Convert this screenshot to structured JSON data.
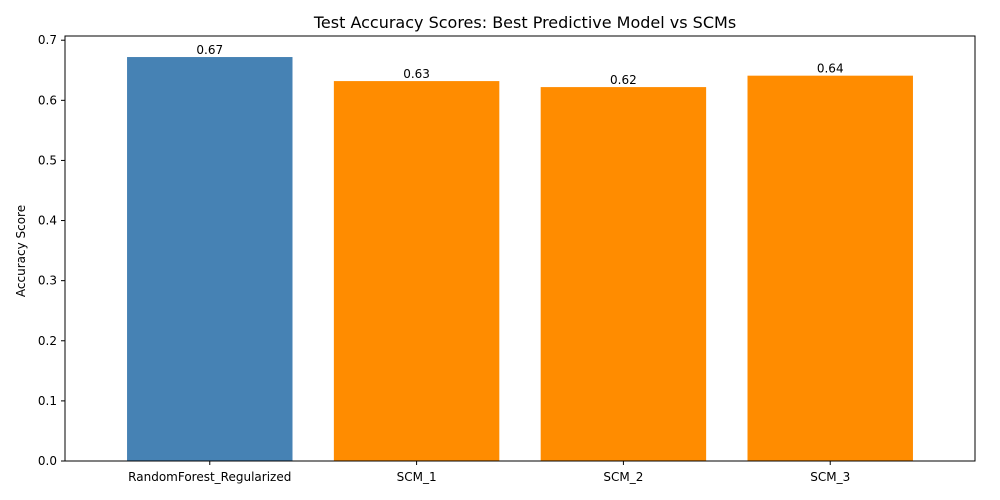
{
  "chart_data": {
    "type": "bar",
    "title": "Test Accuracy Scores: Best Predictive Model vs SCMs",
    "xlabel": "",
    "ylabel": "Accuracy Score",
    "categories": [
      "RandomForest_Regularized",
      "SCM_1",
      "SCM_2",
      "SCM_3"
    ],
    "values": [
      0.672,
      0.632,
      0.622,
      0.641
    ],
    "value_labels": [
      "0.67",
      "0.63",
      "0.62",
      "0.64"
    ],
    "bar_colors": [
      "#4682b4",
      "#ff8c00",
      "#ff8c00",
      "#ff8c00"
    ],
    "ylim": [
      0,
      0.707
    ],
    "yticks": [
      0.0,
      0.1,
      0.2,
      0.3,
      0.4,
      0.5,
      0.6,
      0.7
    ],
    "ytick_labels": [
      "0.0",
      "0.1",
      "0.2",
      "0.3",
      "0.4",
      "0.5",
      "0.6",
      "0.7"
    ],
    "grid": false,
    "legend": "none"
  }
}
